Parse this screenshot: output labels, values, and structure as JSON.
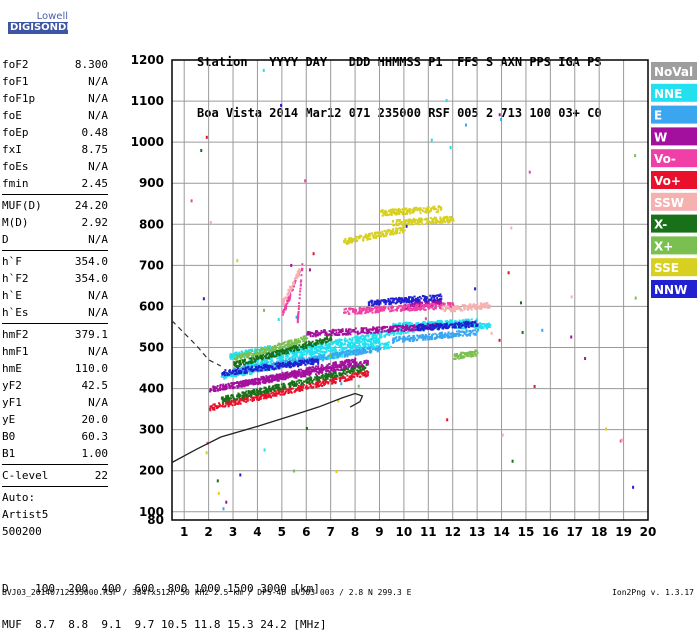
{
  "logo": {
    "line1": "Lowell",
    "line2": "DIGISONDE"
  },
  "header": {
    "line1": "Station   YYYY DAY   DDD HHMMSS P1  FFS S AXN PPS IGA PS",
    "line2": "Boa Vista 2014 Mar12 071 235000 RSF 005 2 713 100 03+ C0"
  },
  "params": {
    "group1": [
      {
        "k": "foF2",
        "v": "8.300"
      },
      {
        "k": "foF1",
        "v": "N/A"
      },
      {
        "k": "foF1p",
        "v": "N/A"
      },
      {
        "k": "foE",
        "v": "N/A"
      },
      {
        "k": "foEp",
        "v": "0.48"
      },
      {
        "k": "fxI",
        "v": "8.75"
      },
      {
        "k": "foEs",
        "v": "N/A"
      },
      {
        "k": "fmin",
        "v": "2.45"
      }
    ],
    "group2": [
      {
        "k": "MUF(D)",
        "v": "24.20"
      },
      {
        "k": "M(D)",
        "v": "2.92"
      },
      {
        "k": "D",
        "v": "N/A"
      }
    ],
    "group3": [
      {
        "k": "h`F",
        "v": "354.0"
      },
      {
        "k": "h`F2",
        "v": "354.0"
      },
      {
        "k": "h`E",
        "v": "N/A"
      },
      {
        "k": "h`Es",
        "v": "N/A"
      }
    ],
    "group4": [
      {
        "k": "hmF2",
        "v": "379.1"
      },
      {
        "k": "hmF1",
        "v": "N/A"
      },
      {
        "k": "hmE",
        "v": "110.0"
      },
      {
        "k": "yF2",
        "v": "42.5"
      },
      {
        "k": "yF1",
        "v": "N/A"
      },
      {
        "k": "yE",
        "v": "20.0"
      },
      {
        "k": "B0",
        "v": "60.3"
      },
      {
        "k": "B1",
        "v": "1.00"
      }
    ],
    "clevel": {
      "k": "C-level",
      "v": "22"
    },
    "auto_label": "Auto:",
    "artist": "Artist5",
    "code": "500200"
  },
  "legend": [
    {
      "label": "NoVal",
      "color": "#9e9e9e"
    },
    {
      "label": "NNE",
      "color": "#22e0f0"
    },
    {
      "label": "E",
      "color": "#3aa6f0"
    },
    {
      "label": "W",
      "color": "#a4109e"
    },
    {
      "label": "Vo-",
      "color": "#f040a8"
    },
    {
      "label": "Vo+",
      "color": "#e8102a"
    },
    {
      "label": "SSW",
      "color": "#f5b0b0"
    },
    {
      "label": "X-",
      "color": "#187018"
    },
    {
      "label": "X+",
      "color": "#7ac050"
    },
    {
      "label": "SSE",
      "color": "#d8d020"
    },
    {
      "label": "NNW",
      "color": "#2020d0"
    }
  ],
  "chart_data": {
    "type": "scatter",
    "xlabel": "",
    "ylabel": "",
    "xlim": [
      0.5,
      20.0
    ],
    "ylim": [
      80,
      1200
    ],
    "xticks": [
      1,
      2,
      3,
      4,
      5,
      6,
      7,
      8,
      9,
      10,
      11,
      12,
      13,
      14,
      15,
      16,
      17,
      18,
      19,
      20
    ],
    "yticks": [
      80,
      100,
      200,
      300,
      400,
      500,
      600,
      700,
      800,
      900,
      1000,
      1100,
      1200
    ],
    "grid": true,
    "legend_position": "right",
    "series": [
      {
        "name": "NNE",
        "color": "#22e0f0",
        "traces": [
          {
            "x": [
              2.5,
              9.5
            ],
            "y": [
              432,
              510
            ]
          },
          {
            "x": [
              3.5,
              9.0
            ],
            "y": [
              462,
              520
            ]
          },
          {
            "x": [
              4.5,
              11.5
            ],
            "y": [
              485,
              560
            ]
          },
          {
            "x": [
              9.5,
              13.0
            ],
            "y": [
              555,
              565
            ]
          },
          {
            "x": [
              11.0,
              13.5
            ],
            "y": [
              555,
              555
            ]
          },
          {
            "x": [
              2.8,
              4.5
            ],
            "y": [
              480,
              500
            ]
          }
        ]
      },
      {
        "name": "E",
        "color": "#3aa6f0",
        "traces": [
          {
            "x": [
              3.0,
              9.0
            ],
            "y": [
              445,
              500
            ]
          },
          {
            "x": [
              9.5,
              13.0
            ],
            "y": [
              520,
              540
            ]
          }
        ]
      },
      {
        "name": "W",
        "color": "#a4109e",
        "traces": [
          {
            "x": [
              2.0,
              8.5
            ],
            "y": [
              400,
              465
            ]
          },
          {
            "x": [
              3.0,
              8.0
            ],
            "y": [
              410,
              470
            ]
          },
          {
            "x": [
              6.0,
              11.5
            ],
            "y": [
              535,
              555
            ]
          },
          {
            "x": [
              10.0,
              11.5
            ],
            "y": [
              600,
              615
            ]
          }
        ]
      },
      {
        "name": "Vo-",
        "color": "#f040a8",
        "traces": [
          {
            "x": [
              5.0,
              5.7
            ],
            "y": [
              585,
              690
            ]
          },
          {
            "x": [
              5.6,
              5.8
            ],
            "y": [
              560,
              700
            ]
          },
          {
            "x": [
              7.5,
              12.0
            ],
            "y": [
              590,
              605
            ]
          }
        ]
      },
      {
        "name": "Vo+",
        "color": "#e8102a",
        "traces": [
          {
            "x": [
              2.0,
              8.5
            ],
            "y": [
              355,
              440
            ]
          }
        ]
      },
      {
        "name": "SSW",
        "color": "#f5b0b0",
        "traces": [
          {
            "x": [
              11.5,
              13.5
            ],
            "y": [
              595,
              605
            ]
          },
          {
            "x": [
              5.0,
              5.7
            ],
            "y": [
              610,
              690
            ]
          }
        ]
      },
      {
        "name": "X-",
        "color": "#187018",
        "traces": [
          {
            "x": [
              2.5,
              8.5
            ],
            "y": [
              375,
              455
            ]
          },
          {
            "x": [
              3.0,
              7.0
            ],
            "y": [
              460,
              525
            ]
          }
        ]
      },
      {
        "name": "X+",
        "color": "#7ac050",
        "traces": [
          {
            "x": [
              3.0,
              6.0
            ],
            "y": [
              475,
              525
            ]
          },
          {
            "x": [
              12.0,
              13.0
            ],
            "y": [
              480,
              490
            ]
          }
        ]
      },
      {
        "name": "SSE",
        "color": "#d8d020",
        "traces": [
          {
            "x": [
              7.5,
              10.0
            ],
            "y": [
              760,
              790
            ]
          },
          {
            "x": [
              9.0,
              11.5
            ],
            "y": [
              830,
              840
            ]
          },
          {
            "x": [
              9.5,
              12.0
            ],
            "y": [
              805,
              815
            ]
          }
        ]
      },
      {
        "name": "NNW",
        "color": "#2020d0",
        "traces": [
          {
            "x": [
              8.5,
              11.5
            ],
            "y": [
              610,
              625
            ]
          },
          {
            "x": [
              10.5,
              13.0
            ],
            "y": [
              550,
              560
            ]
          },
          {
            "x": [
              2.5,
              6.5
            ],
            "y": [
              440,
              470
            ]
          }
        ]
      }
    ],
    "profile_curve": {
      "solid_x": [
        0.5,
        1.5,
        2.5,
        4.0,
        5.5,
        6.5,
        7.5,
        8.0,
        8.3,
        8.2,
        7.8
      ],
      "solid_y": [
        220,
        252,
        282,
        308,
        336,
        355,
        378,
        388,
        382,
        368,
        355
      ],
      "dashed_x": [
        0.5,
        1.5,
        2.0,
        2.5
      ],
      "dashed_y": [
        565,
        505,
        470,
        455
      ]
    }
  },
  "bottom": {
    "row1": "D    100  200  400  600  800 1000 1500 3000 [km]",
    "row2": "MUF  8.7  8.8  9.1  9.7 10.5 11.8 15.3 24.2 [MHz]"
  },
  "footer": {
    "left": "BVJ03_20140712335000.RSF / 384fx512h 50 kHz 2.5 km / DPS-4D BVJ03 003 / 2.8 N 299.3 E",
    "right": "Ion2Png v. 1.3.17"
  }
}
